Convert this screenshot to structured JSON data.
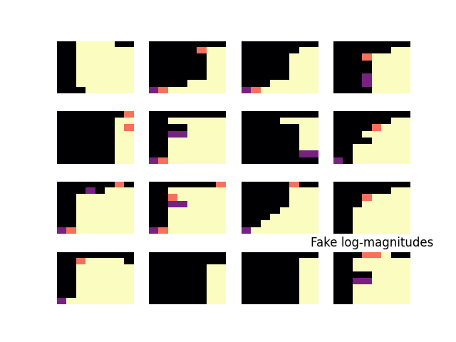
{
  "chart_data": {
    "type": "heatmap",
    "title": "Fake log-magnitudes",
    "color": "magma",
    "tick_labels": false,
    "color_range": [
      0,
      1
    ],
    "panels": [
      {
        "cells": [
          [
            0,
            0,
            1,
            1,
            1,
            1,
            0,
            0
          ],
          [
            0,
            0,
            1,
            1,
            1,
            1,
            1,
            1
          ],
          [
            0,
            0,
            1,
            1,
            1,
            1,
            1,
            1
          ],
          [
            0,
            0,
            1,
            1,
            1,
            1,
            1,
            1
          ],
          [
            0,
            0,
            1,
            1,
            1,
            1,
            1,
            1
          ],
          [
            0,
            0,
            1,
            1,
            1,
            1,
            1,
            1
          ],
          [
            0,
            0,
            1,
            1,
            1,
            1,
            1,
            1
          ],
          [
            0,
            0,
            0,
            1,
            1,
            1,
            1,
            1
          ]
        ]
      },
      {
        "cells": [
          [
            0,
            0,
            0,
            0,
            0,
            0,
            0,
            0
          ],
          [
            0,
            0,
            0,
            0,
            0,
            0.7,
            1,
            1
          ],
          [
            0,
            0,
            0,
            0,
            0,
            0,
            1,
            1
          ],
          [
            0,
            0,
            0,
            0,
            0,
            0,
            1,
            1
          ],
          [
            0,
            0,
            0,
            0,
            0,
            0,
            1,
            1
          ],
          [
            0,
            0,
            0,
            0,
            0,
            0,
            1,
            1
          ],
          [
            0,
            0,
            0,
            0,
            1,
            1,
            1,
            1
          ],
          [
            0.35,
            0.7,
            1,
            1,
            1,
            1,
            1,
            1
          ]
        ]
      },
      {
        "cells": [
          [
            0,
            0,
            0,
            0,
            0,
            0,
            0,
            0
          ],
          [
            0,
            0,
            0,
            0,
            0,
            0,
            1,
            1
          ],
          [
            0,
            0,
            0,
            0,
            0,
            1,
            1,
            1
          ],
          [
            0,
            0,
            0,
            0,
            0,
            1,
            1,
            1
          ],
          [
            0,
            0,
            0,
            0,
            0,
            1,
            1,
            1
          ],
          [
            0,
            0,
            0,
            0,
            0,
            1,
            1,
            1
          ],
          [
            0,
            0,
            0,
            1,
            1,
            1,
            1,
            1
          ],
          [
            0.35,
            0.7,
            1,
            1,
            1,
            1,
            1,
            1
          ]
        ]
      },
      {
        "cells": [
          [
            0,
            0,
            0,
            0,
            0,
            0,
            0,
            0
          ],
          [
            0,
            0,
            0,
            0,
            0,
            0,
            1,
            1
          ],
          [
            0,
            0,
            0,
            0.7,
            1,
            1,
            1,
            1
          ],
          [
            0,
            0,
            0,
            0,
            1,
            1,
            1,
            1
          ],
          [
            0,
            0,
            0,
            0,
            1,
            1,
            1,
            1
          ],
          [
            0,
            0,
            0,
            0.35,
            1,
            1,
            1,
            1
          ],
          [
            0,
            0,
            0,
            0.35,
            1,
            1,
            1,
            1
          ],
          [
            0,
            0,
            0,
            0,
            1,
            1,
            1,
            1
          ]
        ]
      },
      {
        "cells": [
          [
            0,
            0,
            0,
            0,
            0,
            0,
            0,
            0.7
          ],
          [
            0,
            0,
            0,
            0,
            0,
            0,
            1,
            1
          ],
          [
            0,
            0,
            0,
            0,
            0,
            0,
            1,
            0.7
          ],
          [
            0,
            0,
            0,
            0,
            0,
            0,
            1,
            1
          ],
          [
            0,
            0,
            0,
            0,
            0,
            0,
            1,
            1
          ],
          [
            0,
            0,
            0,
            0,
            0,
            0,
            1,
            1
          ],
          [
            0,
            0,
            0,
            0,
            0,
            0,
            1,
            1
          ],
          [
            0,
            0,
            0,
            0,
            0,
            0,
            1,
            1
          ]
        ]
      },
      {
        "cells": [
          [
            0,
            0,
            0,
            0,
            0,
            0,
            0,
            0
          ],
          [
            0,
            0,
            1,
            1,
            1,
            1,
            1,
            1
          ],
          [
            0,
            0,
            0,
            0,
            1,
            1,
            1,
            1
          ],
          [
            0,
            0,
            0.35,
            0.35,
            1,
            1,
            1,
            1
          ],
          [
            0,
            0,
            1,
            1,
            1,
            1,
            1,
            1
          ],
          [
            0,
            0,
            1,
            1,
            1,
            1,
            1,
            1
          ],
          [
            0,
            0,
            1,
            1,
            1,
            1,
            1,
            1
          ],
          [
            0.35,
            0.7,
            1,
            1,
            1,
            1,
            1,
            1
          ]
        ]
      },
      {
        "cells": [
          [
            0,
            0,
            0,
            0,
            0,
            0,
            0,
            0
          ],
          [
            0,
            0,
            0,
            0,
            1,
            1,
            1,
            1
          ],
          [
            0,
            0,
            0,
            0,
            0,
            0,
            1,
            1
          ],
          [
            0,
            0,
            0,
            0,
            0,
            0,
            1,
            1
          ],
          [
            0,
            0,
            0,
            0,
            0,
            0,
            1,
            1
          ],
          [
            0,
            0,
            0,
            0,
            0,
            0,
            1,
            1
          ],
          [
            0,
            0,
            0,
            0,
            0,
            0,
            0.35,
            0.35
          ],
          [
            0,
            0,
            0,
            0,
            0,
            0,
            0,
            0
          ]
        ]
      },
      {
        "cells": [
          [
            0,
            0,
            0,
            0,
            0,
            0,
            0,
            0
          ],
          [
            0,
            0,
            0,
            0,
            0,
            0,
            1,
            1
          ],
          [
            0,
            0,
            0,
            0,
            0.7,
            1,
            1,
            1
          ],
          [
            0,
            0,
            0,
            1,
            1,
            1,
            1,
            1
          ],
          [
            0,
            0,
            0,
            0,
            1,
            1,
            1,
            1
          ],
          [
            0,
            0,
            1,
            1,
            1,
            1,
            1,
            1
          ],
          [
            0,
            0,
            1,
            1,
            1,
            1,
            1,
            1
          ],
          [
            0.35,
            0,
            1,
            1,
            1,
            1,
            1,
            1
          ]
        ]
      },
      {
        "cells": [
          [
            0,
            0,
            0,
            0,
            0,
            0,
            0.7,
            0
          ],
          [
            0,
            0,
            0,
            0.35,
            0,
            1,
            1,
            1
          ],
          [
            0,
            0,
            1,
            1,
            1,
            1,
            1,
            1
          ],
          [
            0,
            0,
            1,
            1,
            1,
            1,
            1,
            1
          ],
          [
            0,
            0,
            1,
            1,
            1,
            1,
            1,
            1
          ],
          [
            0,
            0,
            1,
            1,
            1,
            1,
            1,
            1
          ],
          [
            0,
            0,
            1,
            1,
            1,
            1,
            1,
            1
          ],
          [
            0.35,
            0.7,
            1,
            1,
            1,
            1,
            1,
            1
          ]
        ]
      },
      {
        "cells": [
          [
            0,
            0,
            0,
            0,
            0,
            0,
            0,
            0.7
          ],
          [
            0,
            0,
            1,
            1,
            1,
            1,
            1,
            1
          ],
          [
            0,
            0,
            0.7,
            1,
            1,
            1,
            1,
            1
          ],
          [
            0,
            0,
            0.35,
            0.35,
            1,
            1,
            1,
            1
          ],
          [
            0,
            0,
            1,
            1,
            1,
            1,
            1,
            1
          ],
          [
            0,
            0,
            1,
            1,
            1,
            1,
            1,
            1
          ],
          [
            0,
            0,
            1,
            1,
            1,
            1,
            1,
            1
          ],
          [
            0.35,
            0.7,
            1,
            1,
            1,
            1,
            1,
            1
          ]
        ]
      },
      {
        "cells": [
          [
            0,
            0,
            0,
            0,
            0,
            0.7,
            0,
            0
          ],
          [
            0,
            0,
            0,
            0,
            0,
            1,
            1,
            1
          ],
          [
            0,
            0,
            0,
            0,
            0,
            1,
            1,
            1
          ],
          [
            0,
            0,
            0,
            0,
            0,
            1,
            1,
            1
          ],
          [
            0,
            0,
            0,
            0,
            1,
            1,
            1,
            1
          ],
          [
            0,
            0,
            0,
            1,
            1,
            1,
            1,
            1
          ],
          [
            0,
            0,
            1,
            1,
            1,
            1,
            1,
            1
          ],
          [
            0.35,
            1,
            1,
            1,
            1,
            1,
            1,
            1
          ]
        ]
      },
      {
        "cells": [
          [
            0,
            0,
            0,
            0,
            0,
            0,
            0,
            0
          ],
          [
            0,
            0,
            0,
            0,
            0,
            0,
            1,
            1
          ],
          [
            0,
            0,
            0,
            0.7,
            1,
            1,
            1,
            1
          ],
          [
            0,
            0,
            0,
            1,
            1,
            1,
            1,
            1
          ],
          [
            0,
            0,
            1,
            1,
            1,
            1,
            1,
            1
          ],
          [
            0,
            0,
            1,
            1,
            1,
            1,
            1,
            1
          ],
          [
            0,
            0,
            1,
            1,
            1,
            1,
            1,
            1
          ],
          [
            0,
            0,
            1,
            1,
            1,
            1,
            1,
            1
          ]
        ]
      },
      {
        "cells": [
          [
            0,
            0,
            0,
            0,
            0,
            0,
            0,
            0
          ],
          [
            0,
            0,
            0.7,
            1,
            1,
            1,
            1,
            0
          ],
          [
            0,
            0,
            1,
            1,
            1,
            1,
            1,
            1
          ],
          [
            0,
            0,
            1,
            1,
            1,
            1,
            1,
            1
          ],
          [
            0,
            0,
            1,
            1,
            1,
            1,
            1,
            1
          ],
          [
            0,
            0,
            1,
            1,
            1,
            1,
            1,
            1
          ],
          [
            0,
            0,
            1,
            1,
            1,
            1,
            1,
            1
          ],
          [
            0.35,
            1,
            1,
            1,
            1,
            1,
            1,
            1
          ]
        ]
      },
      {
        "cells": [
          [
            0,
            0,
            0,
            0,
            0,
            0,
            0,
            0
          ],
          [
            0,
            0,
            0,
            0,
            0,
            0,
            0,
            0
          ],
          [
            0,
            0,
            0,
            0,
            0,
            0,
            1,
            1
          ],
          [
            0,
            0,
            0,
            0,
            0,
            0,
            1,
            1
          ],
          [
            0,
            0,
            0,
            0,
            0,
            0,
            1,
            1
          ],
          [
            0,
            0,
            0,
            0,
            0,
            0,
            1,
            1
          ],
          [
            0,
            0,
            0,
            0,
            0,
            0,
            1,
            1
          ],
          [
            0,
            0,
            0,
            0,
            0,
            0,
            1,
            1
          ]
        ]
      },
      {
        "cells": [
          [
            0,
            0,
            0,
            0,
            0,
            0,
            0,
            0
          ],
          [
            0,
            0,
            0,
            0,
            0,
            0,
            1,
            1
          ],
          [
            0,
            0,
            0,
            0,
            0,
            0,
            1,
            1
          ],
          [
            0,
            0,
            0,
            0,
            0,
            0,
            1,
            1
          ],
          [
            0,
            0,
            0,
            0,
            0,
            0,
            1,
            1
          ],
          [
            0,
            0,
            0,
            0,
            0,
            0,
            1,
            1
          ],
          [
            0,
            0,
            0,
            0,
            0,
            0,
            1,
            1
          ],
          [
            0,
            0,
            0,
            0,
            0,
            0,
            1,
            1
          ]
        ]
      },
      {
        "cells": [
          [
            0,
            0,
            0,
            0.7,
            0.7,
            1,
            0,
            0
          ],
          [
            0,
            0,
            1,
            1,
            1,
            1,
            1,
            1
          ],
          [
            0,
            0,
            1,
            1,
            1,
            1,
            1,
            1
          ],
          [
            0,
            0,
            0,
            0,
            1,
            1,
            1,
            1
          ],
          [
            0,
            0,
            0.35,
            0.35,
            1,
            1,
            1,
            1
          ],
          [
            0,
            0,
            1,
            1,
            1,
            1,
            1,
            1
          ],
          [
            0,
            0,
            1,
            1,
            1,
            1,
            1,
            1
          ],
          [
            0,
            0,
            1,
            1,
            1,
            1,
            1,
            1
          ]
        ]
      }
    ]
  }
}
